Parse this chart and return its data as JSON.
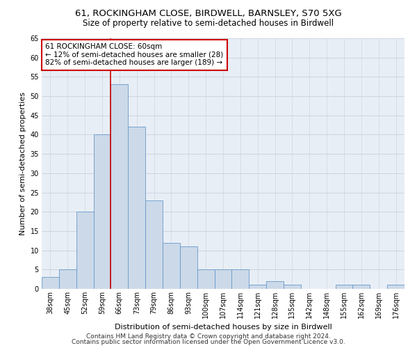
{
  "title": "61, ROCKINGHAM CLOSE, BIRDWELL, BARNSLEY, S70 5XG",
  "subtitle": "Size of property relative to semi-detached houses in Birdwell",
  "xlabel": "Distribution of semi-detached houses by size in Birdwell",
  "ylabel": "Number of semi-detached properties",
  "categories": [
    "38sqm",
    "45sqm",
    "52sqm",
    "59sqm",
    "66sqm",
    "73sqm",
    "79sqm",
    "86sqm",
    "93sqm",
    "100sqm",
    "107sqm",
    "114sqm",
    "121sqm",
    "128sqm",
    "135sqm",
    "142sqm",
    "148sqm",
    "155sqm",
    "162sqm",
    "169sqm",
    "176sqm"
  ],
  "values": [
    3,
    5,
    20,
    40,
    53,
    42,
    23,
    12,
    11,
    5,
    5,
    5,
    1,
    2,
    1,
    0,
    0,
    1,
    1,
    0,
    1
  ],
  "bar_color": "#ccd9e8",
  "bar_edge_color": "#6699cc",
  "red_line_x": 3.5,
  "annotation_text": "61 ROCKINGHAM CLOSE: 60sqm\n← 12% of semi-detached houses are smaller (28)\n82% of semi-detached houses are larger (189) →",
  "annotation_box_color": "#ffffff",
  "annotation_box_edge": "#cc0000",
  "red_line_color": "#cc0000",
  "ylim": [
    0,
    65
  ],
  "yticks": [
    0,
    5,
    10,
    15,
    20,
    25,
    30,
    35,
    40,
    45,
    50,
    55,
    60,
    65
  ],
  "grid_color": "#c8d0dc",
  "bg_color": "#e8eef5",
  "footer_line1": "Contains HM Land Registry data © Crown copyright and database right 2024.",
  "footer_line2": "Contains public sector information licensed under the Open Government Licence v3.0.",
  "title_fontsize": 9.5,
  "subtitle_fontsize": 8.5,
  "axis_label_fontsize": 8,
  "tick_fontsize": 7,
  "annotation_fontsize": 7.5,
  "footer_fontsize": 6.5
}
